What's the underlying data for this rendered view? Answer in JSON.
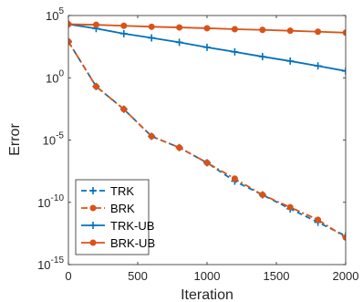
{
  "chart_data": {
    "type": "line",
    "xlabel": "Iteration",
    "ylabel": "Error",
    "xlim": [
      0,
      2000
    ],
    "ylim": [
      1e-15,
      100000.0
    ],
    "y_scale": "log",
    "grid": false,
    "legend_position": "bottom-left",
    "x_ticks": [
      {
        "value": 0,
        "label": "0"
      },
      {
        "value": 500,
        "label": "500"
      },
      {
        "value": 1000,
        "label": "1000"
      },
      {
        "value": 1500,
        "label": "1500"
      },
      {
        "value": 2000,
        "label": "2000"
      }
    ],
    "y_ticks": [
      {
        "value": 1e-15,
        "base": "10",
        "exp": "-15"
      },
      {
        "value": 1e-10,
        "base": "10",
        "exp": "-10"
      },
      {
        "value": 1e-05,
        "base": "10",
        "exp": "-5"
      },
      {
        "value": 1,
        "base": "10",
        "exp": "0"
      },
      {
        "value": 100000.0,
        "base": "10",
        "exp": "5"
      }
    ],
    "series": [
      {
        "name": "TRK",
        "color": "#0072BD",
        "line_style": "dashed",
        "marker": "plus",
        "x": [
          0,
          200,
          400,
          600,
          800,
          1000,
          1200,
          1400,
          1600,
          1800,
          2000
        ],
        "y": [
          800,
          0.2,
          0.003,
          2e-05,
          2.5e-06,
          1.5e-07,
          5e-09,
          4e-10,
          3e-11,
          2.5e-12,
          2e-13
        ]
      },
      {
        "name": "BRK",
        "color": "#D95319",
        "line_style": "dashdot",
        "marker": "circle",
        "x": [
          0,
          200,
          400,
          600,
          800,
          1000,
          1200,
          1400,
          1600,
          1800,
          2000
        ],
        "y": [
          800,
          0.2,
          0.003,
          2e-05,
          2.5e-06,
          1.5e-07,
          8e-09,
          4e-10,
          4e-11,
          4e-12,
          1.5e-13
        ]
      },
      {
        "name": "TRK-UB",
        "color": "#0072BD",
        "line_style": "solid",
        "marker": "plus",
        "x": [
          0,
          200,
          400,
          600,
          800,
          1000,
          1200,
          1400,
          1600,
          1800,
          2000
        ],
        "y": [
          20000,
          9000,
          3500,
          1600,
          700,
          280,
          120,
          50,
          22,
          9,
          3.5
        ]
      },
      {
        "name": "BRK-UB",
        "color": "#D95319",
        "line_style": "solid",
        "marker": "circle",
        "x": [
          0,
          200,
          400,
          600,
          800,
          1000,
          1200,
          1400,
          1600,
          1800,
          2000
        ],
        "y": [
          20000,
          18000,
          15000,
          12500,
          11000,
          9500,
          8000,
          7000,
          6000,
          5000,
          4200
        ]
      }
    ]
  }
}
